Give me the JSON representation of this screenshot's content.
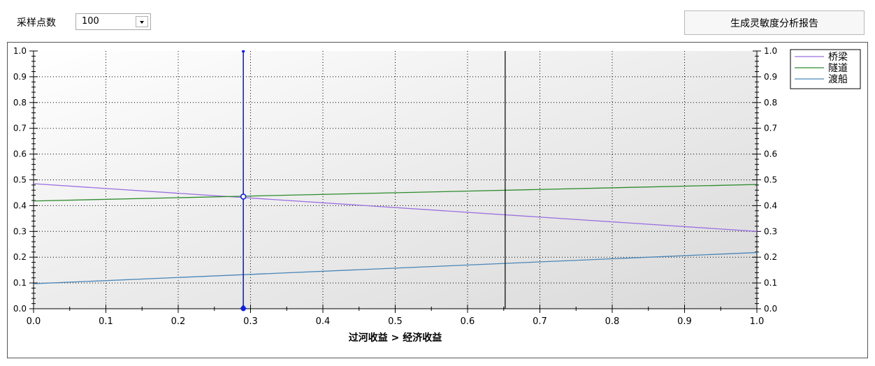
{
  "toolbar": {
    "sample_label": "采样点数",
    "sample_value": "100",
    "report_button": "生成灵敏度分析报告"
  },
  "chart_data": {
    "type": "line",
    "title": "",
    "xlabel": "过河收益 > 经济收益",
    "ylabel": "",
    "xlim": [
      0,
      1
    ],
    "ylim": [
      0,
      1
    ],
    "x_ticks": [
      "0.0",
      "0.1",
      "0.2",
      "0.3",
      "0.4",
      "0.5",
      "0.6",
      "0.7",
      "0.8",
      "0.9",
      "1.0"
    ],
    "y_ticks": [
      "0.0",
      "0.1",
      "0.2",
      "0.3",
      "0.4",
      "0.5",
      "0.6",
      "0.7",
      "0.8",
      "0.9",
      "1.0"
    ],
    "grid": true,
    "legend_position": "top-right",
    "series": [
      {
        "name": "桥梁",
        "color": "#9b6fe0",
        "x": [
          0,
          1
        ],
        "y": [
          0.485,
          0.3
        ]
      },
      {
        "name": "隧道",
        "color": "#2e8b2e",
        "x": [
          0,
          1
        ],
        "y": [
          0.418,
          0.482
        ]
      },
      {
        "name": "渡船",
        "color": "#4a86b8",
        "x": [
          0,
          1
        ],
        "y": [
          0.097,
          0.218
        ]
      }
    ],
    "markers": {
      "current_weight": {
        "x": 0.29,
        "color": "#1020e0"
      },
      "threshold": {
        "x": 0.652,
        "color": "#000000"
      },
      "intersection": {
        "x": 0.29,
        "y": 0.435
      }
    },
    "background_gradient": [
      "#ffffff",
      "#d9d9d9"
    ]
  }
}
